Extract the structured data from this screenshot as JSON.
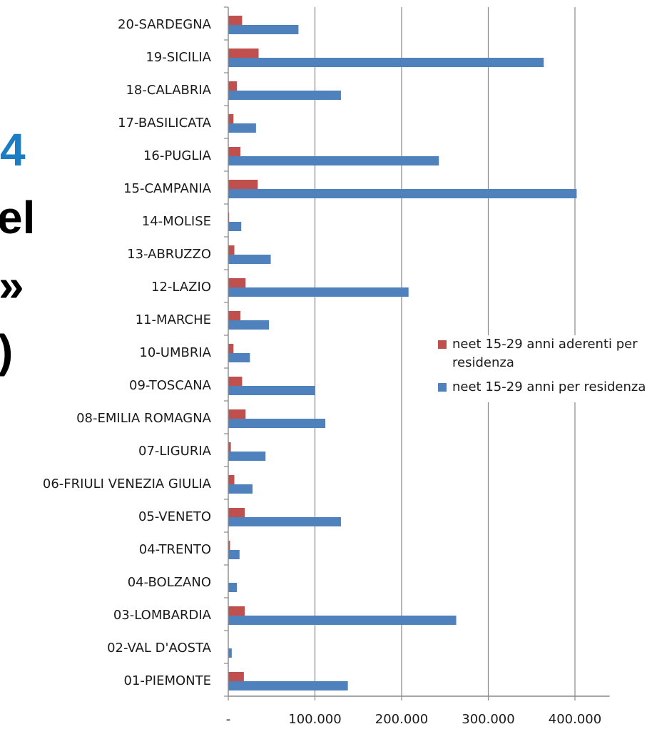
{
  "slide_fragments": [
    {
      "id": "frag-1",
      "text": "4",
      "color": "#1c7cc4"
    },
    {
      "id": "frag-2",
      "text": "el",
      "color": "#000000"
    },
    {
      "id": "frag-3",
      "text": "»",
      "color": "#000000"
    },
    {
      "id": "frag-4",
      "text": ")",
      "color": "#000000"
    }
  ],
  "chart_data": {
    "type": "bar",
    "orientation": "horizontal",
    "categories": [
      "20-SARDEGNA",
      "19-SICILIA",
      "18-CALABRIA",
      "17-BASILICATA",
      "16-PUGLIA",
      "15-CAMPANIA",
      "14-MOLISE",
      "13-ABRUZZO",
      "12-LAZIO",
      "11-MARCHE",
      "10-UMBRIA",
      "09-TOSCANA",
      "08-EMILIA ROMAGNA",
      "07-LIGURIA",
      "06-FRIULI VENEZIA GIULIA",
      "05-VENETO",
      "04-TRENTO",
      "04-BOLZANO",
      "03-LOMBARDIA",
      "02-VAL D'AOSTA",
      "01-PIEMONTE"
    ],
    "series": [
      {
        "name": "neet 15-29 anni aderenti per residenza",
        "color": "#c0504d",
        "values": [
          16000,
          35000,
          10000,
          6000,
          14000,
          34000,
          1000,
          7000,
          20000,
          14000,
          6000,
          16000,
          20000,
          3000,
          7000,
          19000,
          2000,
          0,
          19000,
          0,
          18000
        ]
      },
      {
        "name": "neet 15-29 anni per residenza",
        "color": "#4f81bd",
        "values": [
          81000,
          364000,
          130000,
          32000,
          243000,
          402000,
          15000,
          49000,
          208000,
          47000,
          25000,
          100000,
          112000,
          43000,
          28000,
          130000,
          13000,
          10000,
          263000,
          4000,
          138000
        ]
      }
    ],
    "x_ticks": [
      {
        "value": 0,
        "label": "-"
      },
      {
        "value": 100000,
        "label": "100.000"
      },
      {
        "value": 200000,
        "label": "200.000"
      },
      {
        "value": 300000,
        "label": "300.000"
      },
      {
        "value": 400000,
        "label": "400.000"
      }
    ],
    "xlim": [
      0,
      440000
    ],
    "grid": "vertical major gridlines",
    "legend_position": "right",
    "gridline_color": "#888888",
    "axis_color": "#888888"
  }
}
